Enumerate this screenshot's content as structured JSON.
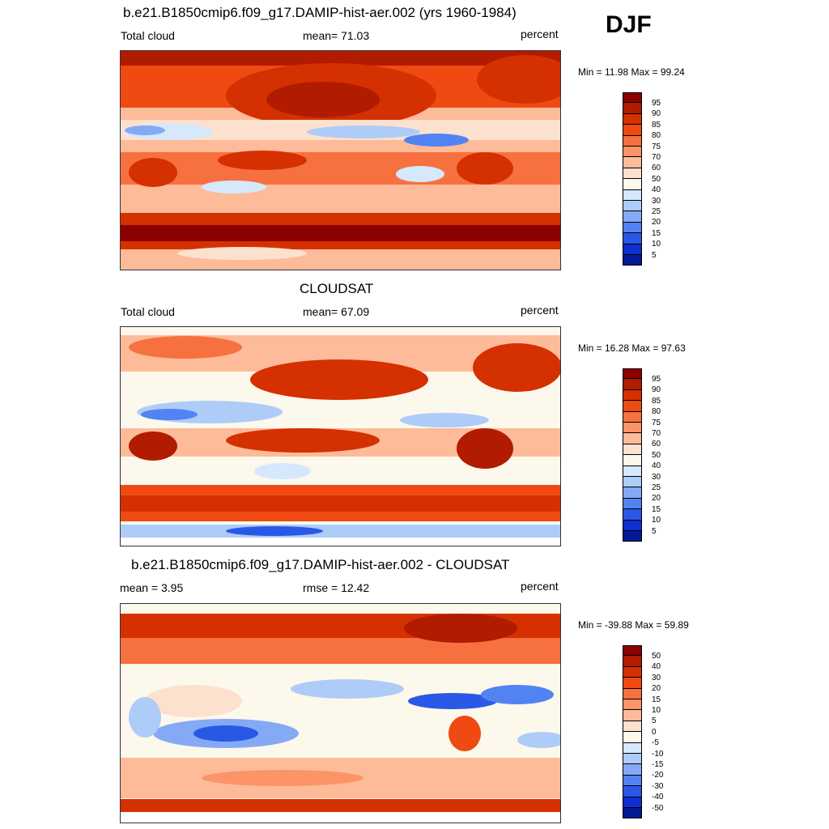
{
  "season": "DJF",
  "panels": [
    {
      "title": "b.e21.B1850cmip6.f09_g17.DAMIP-hist-aer.002 (yrs 1960-1984)",
      "left_label": "Total cloud",
      "center_label": "mean=  71.03",
      "right_label": "percent",
      "minmax": "Min =  11.98 Max =  99.24",
      "colorbar": {
        "labels": [
          "95",
          "90",
          "85",
          "80",
          "75",
          "70",
          "60",
          "50",
          "40",
          "30",
          "25",
          "20",
          "15",
          "10",
          "5"
        ],
        "colors": [
          "#8b0000",
          "#b11b00",
          "#d53000",
          "#ef4a12",
          "#f77040",
          "#fc9468",
          "#fdbb9a",
          "#fde1cf",
          "#fdf8ec",
          "#d6e8fb",
          "#aeccf8",
          "#84aaf6",
          "#5283f3",
          "#2a58e6",
          "#0f2fd0",
          "#021a96"
        ]
      }
    },
    {
      "title": "CLOUDSAT",
      "left_label": "Total cloud",
      "center_label": "mean=  67.09",
      "right_label": "percent",
      "minmax": "Min =  16.28 Max =  97.63",
      "colorbar": {
        "labels": [
          "95",
          "90",
          "85",
          "80",
          "75",
          "70",
          "60",
          "50",
          "40",
          "30",
          "25",
          "20",
          "15",
          "10",
          "5"
        ],
        "colors": [
          "#8b0000",
          "#b11b00",
          "#d53000",
          "#ef4a12",
          "#f77040",
          "#fc9468",
          "#fdbb9a",
          "#fde1cf",
          "#fdf8ec",
          "#d6e8fb",
          "#aeccf8",
          "#84aaf6",
          "#5283f3",
          "#2a58e6",
          "#0f2fd0",
          "#021a96"
        ]
      }
    },
    {
      "title": "b.e21.B1850cmip6.f09_g17.DAMIP-hist-aer.002 - CLOUDSAT",
      "left_label": "mean =   3.95",
      "center_label": "rmse =  12.42",
      "right_label": "percent",
      "minmax": "Min = -39.88 Max =  59.89",
      "colorbar": {
        "labels": [
          "50",
          "40",
          "30",
          "20",
          "15",
          "10",
          "5",
          "0",
          "-5",
          "-10",
          "-15",
          "-20",
          "-30",
          "-40",
          "-50"
        ],
        "colors": [
          "#8b0000",
          "#b11b00",
          "#d53000",
          "#ef4a12",
          "#f77040",
          "#fc9468",
          "#fdbb9a",
          "#fde1cf",
          "#fdf8ec",
          "#d6e8fb",
          "#aeccf8",
          "#84aaf6",
          "#5283f3",
          "#2a58e6",
          "#0f2fd0",
          "#021a96"
        ]
      }
    }
  ]
}
